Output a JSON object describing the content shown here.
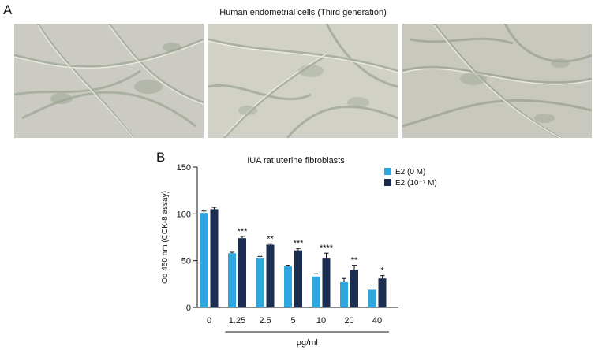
{
  "panel_a": {
    "letter": "A",
    "title": "Human endometrial cells (Third generation)",
    "images": [
      "micrograph-1",
      "micrograph-2",
      "micrograph-3"
    ]
  },
  "panel_b": {
    "letter": "B"
  },
  "chart_data": {
    "type": "bar",
    "title": "IUA rat uterine fibroblasts",
    "xlabel": "μg/ml",
    "ylabel": "Od 450 nm (CCK-8 assay)",
    "ylim": [
      0,
      150
    ],
    "yticks": [
      0,
      50,
      100,
      150
    ],
    "categories": [
      "0",
      "1.25",
      "2.5",
      "5",
      "10",
      "20",
      "40"
    ],
    "bracket_categories": [
      "1.25",
      "2.5",
      "5",
      "10",
      "20",
      "40"
    ],
    "series": [
      {
        "name": "E2 (0 M)",
        "color": "#2ea6e0",
        "values": [
          101,
          58,
          53,
          44,
          33,
          27,
          19
        ],
        "errors": [
          2,
          1,
          1.5,
          1,
          3,
          4,
          5
        ]
      },
      {
        "name": "E2 (10⁻⁷ M)",
        "color": "#1b2e52",
        "values": [
          105,
          74,
          67,
          61,
          53,
          40,
          31
        ],
        "errors": [
          2,
          2,
          1,
          2,
          5,
          5,
          3
        ]
      }
    ],
    "significance": [
      "",
      "***",
      "**",
      "***",
      "****",
      "**",
      "*"
    ],
    "legend_position": "top-right"
  }
}
